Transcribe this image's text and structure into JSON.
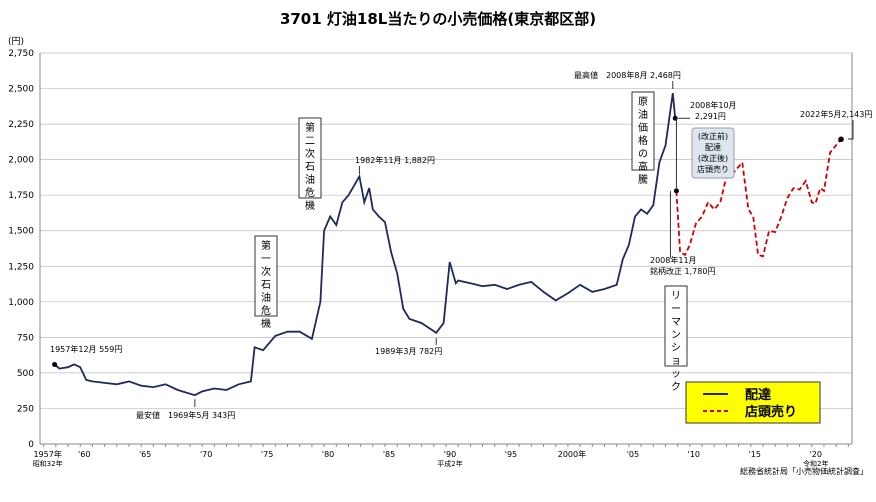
{
  "chart_data": {
    "type": "line",
    "title": "3701 灯油18L当たりの小売価格(東京都区部)",
    "ylabel": "(円)",
    "ylim": [
      0,
      2750
    ],
    "xlim": [
      1956.7,
      2023.3
    ],
    "yticks": [
      "0",
      "250",
      "500",
      "750",
      "1,000",
      "1,250",
      "1,500",
      "1,750",
      "2,000",
      "2,250",
      "2,500",
      "2,750"
    ],
    "xticks": [
      {
        "x": 1957,
        "label": "1957年",
        "sub": "昭和32年"
      },
      {
        "x": 1960,
        "label": "'60"
      },
      {
        "x": 1965,
        "label": "'65"
      },
      {
        "x": 1970,
        "label": "'70"
      },
      {
        "x": 1975,
        "label": "'75"
      },
      {
        "x": 1980,
        "label": "'80"
      },
      {
        "x": 1985,
        "label": "'85"
      },
      {
        "x": 1990,
        "label": "'90",
        "sub": "平成2年"
      },
      {
        "x": 1995,
        "label": "'95"
      },
      {
        "x": 2000,
        "label": "2000年"
      },
      {
        "x": 2005,
        "label": "'05"
      },
      {
        "x": 2010,
        "label": "'10"
      },
      {
        "x": 2015,
        "label": "'15"
      },
      {
        "x": 2020,
        "label": "'20",
        "sub": "令和2年"
      }
    ],
    "grid": true,
    "legend_position": "bottom-right",
    "series": [
      {
        "name": "配達",
        "color": "#1f2a5c",
        "dash": false,
        "x": [
          1957.9,
          1958.3,
          1959,
          1959.5,
          1960,
          1960.5,
          1961,
          1962,
          1963,
          1964,
          1965,
          1966,
          1967,
          1968,
          1969.4,
          1970,
          1971,
          1972,
          1973,
          1974,
          1974.3,
          1975,
          1976,
          1977,
          1978,
          1979,
          1979.7,
          1980,
          1980.5,
          1981,
          1981.5,
          1982,
          1982.9,
          1983.3,
          1983.7,
          1984,
          1984.5,
          1985,
          1985.5,
          1986,
          1986.5,
          1987,
          1988,
          1989.2,
          1989.8,
          1990.3,
          1990.8,
          1991,
          1992,
          1993,
          1994,
          1995,
          1996,
          1997,
          1998,
          1999,
          2000,
          2001,
          2002,
          2003,
          2004,
          2004.5,
          2005,
          2005.5,
          2006,
          2006.5,
          2007,
          2007.5,
          2008,
          2008.6,
          2008.8
        ],
        "y": [
          559,
          530,
          540,
          560,
          540,
          450,
          440,
          430,
          420,
          440,
          410,
          400,
          420,
          380,
          343,
          370,
          390,
          380,
          420,
          440,
          680,
          660,
          760,
          790,
          790,
          740,
          1000,
          1500,
          1600,
          1540,
          1700,
          1750,
          1882,
          1700,
          1800,
          1650,
          1600,
          1560,
          1350,
          1200,
          950,
          880,
          850,
          782,
          850,
          1280,
          1130,
          1150,
          1130,
          1110,
          1120,
          1090,
          1120,
          1140,
          1070,
          1010,
          1060,
          1120,
          1070,
          1090,
          1120,
          1300,
          1400,
          1600,
          1650,
          1620,
          1680,
          1980,
          2100,
          2468,
          2291
        ]
      },
      {
        "name": "店頭売り",
        "color": "#cc0000",
        "dash": true,
        "x": [
          2008.9,
          2009.2,
          2009.6,
          2010,
          2010.5,
          2011,
          2011.5,
          2012,
          2012.5,
          2013,
          2013.5,
          2014,
          2014.3,
          2014.8,
          2015.2,
          2015.6,
          2016,
          2016.5,
          2017,
          2017.5,
          2018,
          2018.5,
          2019,
          2019.5,
          2020,
          2020.3,
          2020.7,
          2021,
          2021.5,
          2022.4
        ],
        "y": [
          1780,
          1350,
          1330,
          1400,
          1550,
          1600,
          1700,
          1650,
          1700,
          1880,
          1900,
          1950,
          1980,
          1650,
          1600,
          1330,
          1320,
          1500,
          1490,
          1600,
          1730,
          1800,
          1790,
          1850,
          1700,
          1690,
          1800,
          1780,
          2050,
          2143
        ]
      }
    ],
    "annotations": {
      "start": "1957年12月 559円",
      "min": "最安値　1969年5月 343円",
      "oil1": "第一次石油危機",
      "oil2": "第二次石油危機",
      "peak82": "1982年11月 1,882円",
      "low89": "1989年3月 782円",
      "max": "最高値　2008年8月 2,468円",
      "crude": "原油価格の高騰",
      "oct08a": "2008年10月",
      "oct08b": "2,291円",
      "nov08a": "2008年11月",
      "nov08b": "銘柄改正 1,780円",
      "lehman": "リーマンショック",
      "may22": "2022年5月2,143円",
      "box": [
        "(改正前)",
        "配達",
        "(改正後)",
        "店頭売り"
      ]
    },
    "source": "総務省統計局「小売物価統計調査」"
  }
}
